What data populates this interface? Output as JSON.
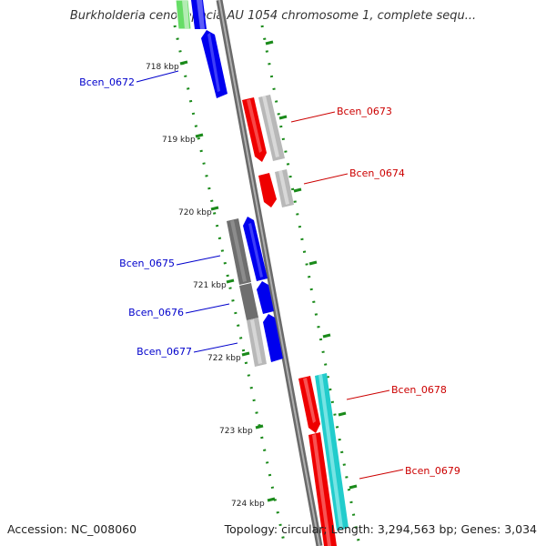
{
  "title": "Burkholderia cenocepacia AU 1054 chromosome 1, complete sequ...",
  "footer": {
    "accession": "Accession: NC_008060",
    "summary": "Topology: circular; Length: 3,294,563 bp; Genes: 3,034"
  },
  "colors": {
    "backbone": "#8c8c8c",
    "ticks": "#1a8a1a",
    "forward_label": "#0000cc",
    "reverse_label": "#cc0000"
  },
  "scale_labels": [
    "718 kbp",
    "719 kbp",
    "720 kbp",
    "721 kbp",
    "722 kbp",
    "723 kbp",
    "724 kbp"
  ],
  "genes": [
    {
      "name": "Bcen_0672",
      "side": "left",
      "color": "#0000ee"
    },
    {
      "name": "Bcen_0673",
      "side": "right",
      "color": "#ee0000"
    },
    {
      "name": "Bcen_0674",
      "side": "right",
      "color": "#ee0000"
    },
    {
      "name": "Bcen_0675",
      "side": "left",
      "color": "#0000ee"
    },
    {
      "name": "Bcen_0676",
      "side": "left",
      "color": "#0000ee"
    },
    {
      "name": "Bcen_0677",
      "side": "left",
      "color": "#0000ee"
    },
    {
      "name": "Bcen_0678",
      "side": "right",
      "color": "#ee0000"
    },
    {
      "name": "Bcen_0679",
      "side": "right",
      "color": "#ee0000"
    }
  ],
  "feature_colors": {
    "cds_forward": "#0000ee",
    "cds_reverse": "#ee0000",
    "cog_light": "#b8b8b8",
    "cog_dark": "#6e6e6e",
    "cog_cyan": "#22cccc",
    "cog_green": "#66dd66"
  }
}
